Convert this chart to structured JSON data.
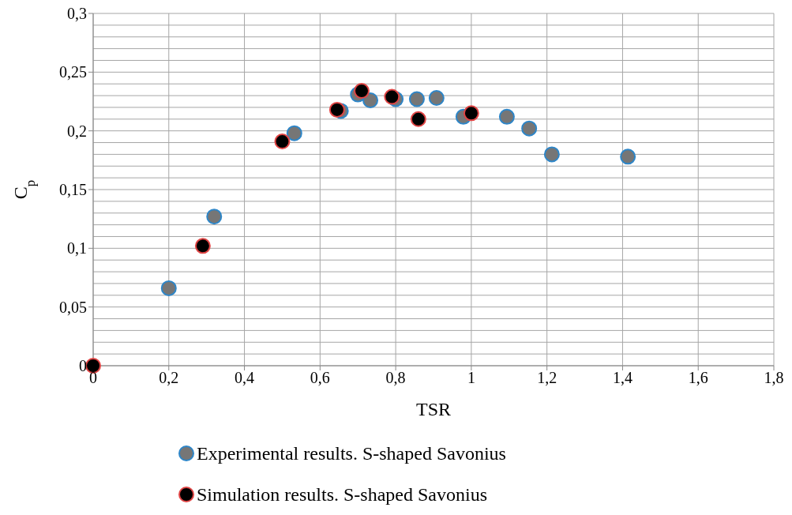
{
  "chart_data": {
    "type": "scatter",
    "xlabel": "TSR",
    "ylabel": "C$_{p}$",
    "xlim": [
      0,
      1.8
    ],
    "xticks": [
      0,
      {
        "value": 0.2,
        "label": "0,2"
      },
      {
        "value": 0.4,
        "label": "0,4"
      },
      {
        "value": 0.6,
        "label": "0,6"
      },
      {
        "value": 0.8,
        "label": "0,8"
      },
      1,
      {
        "value": 1.2,
        "label": "1,2"
      },
      {
        "value": 1.4,
        "label": "1,4"
      },
      {
        "value": 1.6,
        "label": "1,6"
      },
      {
        "value": 1.8,
        "label": "1,8"
      }
    ],
    "ylim": [
      0,
      0.3
    ],
    "yticks": [
      0,
      {
        "value": 0.05,
        "label": "0,05"
      },
      {
        "value": 0.1,
        "label": "0,1"
      },
      {
        "value": 0.15,
        "label": "0,15"
      },
      {
        "value": 0.2,
        "label": "0,2"
      },
      {
        "value": 0.25,
        "label": "0,25"
      },
      {
        "value": 0.3,
        "label": "0,3"
      }
    ],
    "grid": true,
    "legend": "bottom",
    "marker": "circle",
    "series": [
      {
        "name": "Experimental results. S-shaped Savonius",
        "color": "#767676",
        "x": [
          0.2,
          0.32,
          0.532,
          0.655,
          0.7,
          0.733,
          0.8,
          0.856,
          0.908,
          0.979,
          1.094,
          1.153,
          1.213,
          1.414
        ],
        "values": [
          0.066,
          0.127,
          0.198,
          0.217,
          0.231,
          0.226,
          0.227,
          0.227,
          0.228,
          0.212,
          0.212,
          0.202,
          0.18,
          0.178
        ]
      },
      {
        "name": "Simulation results. S-shaped Savonius",
        "color": "#000000",
        "x": [
          0,
          0.29,
          0.5,
          0.645,
          0.71,
          0.79,
          0.86,
          1.0
        ],
        "values": [
          0,
          0.102,
          0.191,
          0.218,
          0.234,
          0.229,
          0.21,
          0.215
        ]
      }
    ]
  }
}
